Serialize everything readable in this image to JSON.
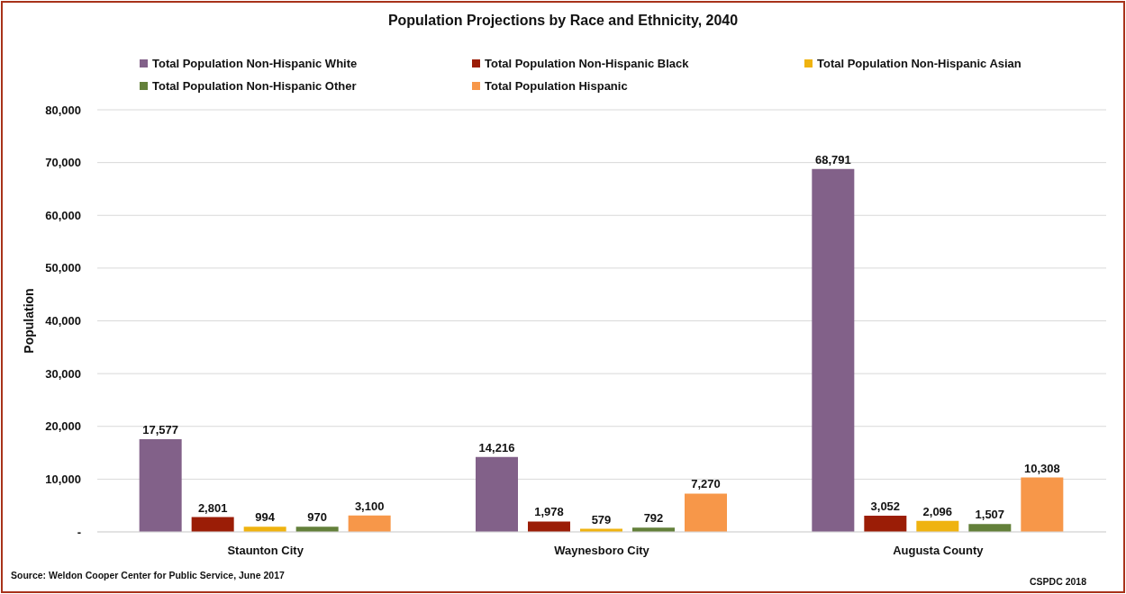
{
  "chart_data": {
    "type": "bar",
    "title": "Population Projections by Race and Ethnicity, 2040",
    "ylabel": "Population",
    "categories": [
      "Staunton City",
      "Waynesboro City",
      "Augusta County"
    ],
    "series": [
      {
        "name": "Total Population Non-Hispanic White",
        "color": "#826189",
        "values": [
          17577,
          14216,
          68791
        ],
        "value_labels": [
          "17,577",
          "14,216",
          "68,791"
        ]
      },
      {
        "name": "Total Population Non-Hispanic Black",
        "color": "#9b1d06",
        "values": [
          2801,
          1978,
          3052
        ],
        "value_labels": [
          "2,801",
          "1,978",
          "3,052"
        ]
      },
      {
        "name": "Total Population Non-Hispanic Asian",
        "color": "#efb310",
        "values": [
          994,
          579,
          2096
        ],
        "value_labels": [
          "994",
          "579",
          "2,096"
        ]
      },
      {
        "name": "Total Population Non-Hispanic Other",
        "color": "#63803a",
        "values": [
          970,
          792,
          1507
        ],
        "value_labels": [
          "970",
          "792",
          "1,507"
        ]
      },
      {
        "name": "Total Population Hispanic",
        "color": "#f79749",
        "values": [
          3100,
          7270,
          10308
        ],
        "value_labels": [
          "3,100",
          "7,270",
          "10,308"
        ]
      }
    ],
    "ylim": [
      0,
      80000
    ],
    "yticks": [
      {
        "value": 0,
        "label": "-"
      },
      {
        "value": 10000,
        "label": "10,000"
      },
      {
        "value": 20000,
        "label": "20,000"
      },
      {
        "value": 30000,
        "label": "30,000"
      },
      {
        "value": 40000,
        "label": "40,000"
      },
      {
        "value": 50000,
        "label": "50,000"
      },
      {
        "value": 60000,
        "label": "60,000"
      },
      {
        "value": 70000,
        "label": "70,000"
      },
      {
        "value": 80000,
        "label": "80,000"
      }
    ],
    "grid": "y",
    "legend": "top",
    "annotations": [
      "Source: Weldon Cooper Center for Public Service, June 2017",
      "CSPDC 2018"
    ]
  }
}
